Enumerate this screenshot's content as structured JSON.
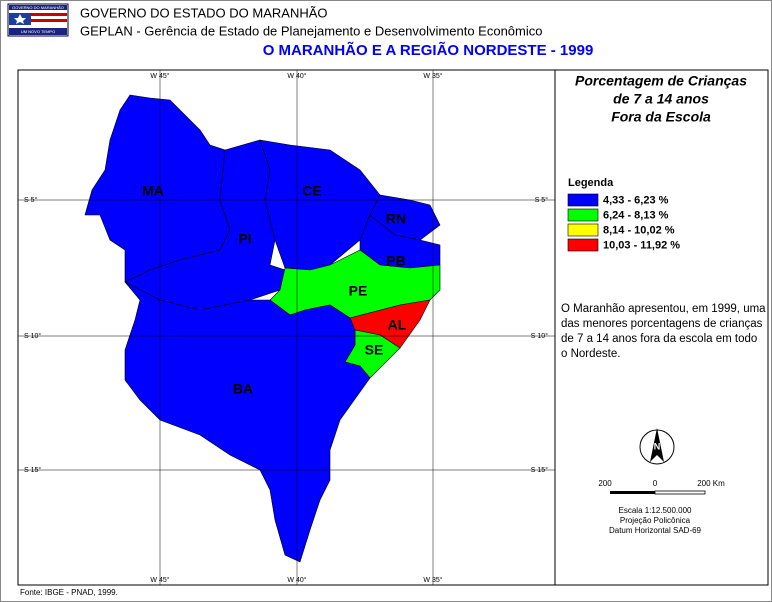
{
  "header": {
    "logo_top": "GOVERNO DO MARANHÃO",
    "logo_bottom": "UM NOVO TEMPO",
    "line1": "GOVERNO DO ESTADO DO MARANHÃO",
    "line2": "GEPLAN - Gerência de Estado de Planejamento e Desenvolvimento Econômico",
    "title": "O MARANHÃO E A REGIÃO NORDESTE - 1999"
  },
  "map": {
    "graticule": {
      "top": [
        "W 45°",
        "W 40°",
        "W 35°"
      ],
      "bottom": [
        "W 45°",
        "W 40°",
        "W 35°"
      ],
      "left": [
        "S 5°",
        "S 10°",
        "S 15°"
      ],
      "right": [
        "S 5°",
        "S 10°",
        "S 15°"
      ]
    },
    "states": [
      {
        "label": "MA",
        "color": "#0000ff"
      },
      {
        "label": "PI",
        "color": "#0000ff"
      },
      {
        "label": "CE",
        "color": "#0000ff"
      },
      {
        "label": "RN",
        "color": "#0000ff"
      },
      {
        "label": "PB",
        "color": "#0000ff"
      },
      {
        "label": "PE",
        "color": "#00ff00"
      },
      {
        "label": "AL",
        "color": "#ff0000"
      },
      {
        "label": "SE",
        "color": "#00ff00"
      },
      {
        "label": "BA",
        "color": "#0000ff"
      }
    ]
  },
  "panel": {
    "title": [
      "Porcentagem de Crianças",
      "de 7 a 14 anos",
      "Fora da Escola"
    ],
    "legend": {
      "title": "Legenda",
      "classes": [
        {
          "label": "4,33 - 6,23 %",
          "color": "#0000ff"
        },
        {
          "label": "6,24 - 8,13 %",
          "color": "#00ff00"
        },
        {
          "label": "8,14 - 10,02 %",
          "color": "#ffff00"
        },
        {
          "label": "10,03 - 11,92 %",
          "color": "#ff0000"
        }
      ]
    },
    "note": "O Maranhão apresentou, em 1999, uma das menores porcentagens de crianças de 7 a 14 anos fora da escola em todo o Nordeste.",
    "north": "N",
    "scale": {
      "ticks": [
        "200",
        "0",
        "200 Km"
      ],
      "lines": [
        "Escala 1:12.500.000",
        "Projeção Policônica",
        "Datum Horizontal SAD-69"
      ]
    }
  },
  "footer": "Fonte: IBGE - PNAD, 1999."
}
